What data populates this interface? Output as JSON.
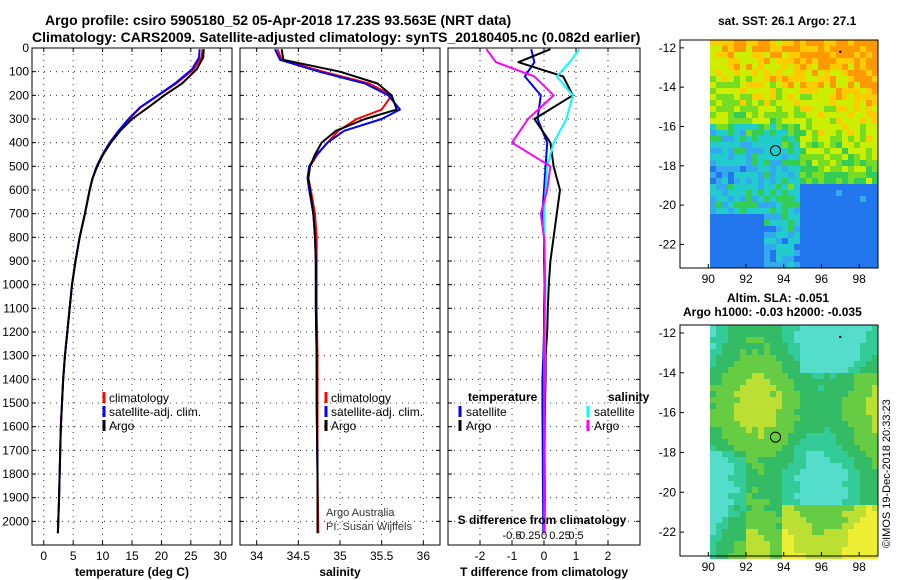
{
  "header": {
    "title_line1": "Argo profile: csiro 5905180_52 05-Apr-2018 17.23S 93.563E (NRT data)",
    "title_line2": "Climatology: CARS2009. Satellite-adjusted climatology: synTS_20180405.nc (0.082d earlier)"
  },
  "colors": {
    "climatology": "#ff0000",
    "satellite": "#0000ff",
    "argo": "#000000",
    "sat_salinity": "#00ffff",
    "argo_salinity_diff": "#ff00ff"
  },
  "chart_data": [
    {
      "type": "line",
      "id": "temperature",
      "xlabel": "temperature (deg C)",
      "ylabel": "",
      "xlim": [
        -2,
        32
      ],
      "ylim": [
        2100,
        0
      ],
      "xticks": [
        0,
        5,
        10,
        15,
        20,
        25,
        30
      ],
      "xtick_labels": [
        "0",
        "5",
        "10",
        "15",
        "20",
        "25",
        "30"
      ],
      "yticks": [
        0,
        100,
        200,
        300,
        400,
        500,
        600,
        700,
        800,
        900,
        1000,
        1100,
        1200,
        1300,
        1400,
        1500,
        1600,
        1700,
        1800,
        1900,
        2000
      ],
      "ytick_labels": [
        "0",
        "100",
        "200",
        "300",
        "400",
        "500",
        "600",
        "700",
        "800",
        "900",
        "1000",
        "1100",
        "1200",
        "1300",
        "1400",
        "1500",
        "1600",
        "1700",
        "1800",
        "1900",
        "2000"
      ],
      "legend": [
        "climatology",
        "satellite-adj. clim.",
        "Argo"
      ],
      "series": [
        {
          "name": "climatology",
          "color": "#ff0000",
          "x": [
            27.0,
            26.8,
            25.5,
            22.5,
            19.5,
            16.5,
            14.5,
            12.8,
            11.2,
            10.0,
            9.0,
            8.3,
            7.8,
            7.0,
            6.1,
            5.4,
            4.8,
            4.4,
            4.0,
            3.6,
            3.3,
            3.1,
            2.9,
            2.8,
            2.6,
            2.4
          ],
          "y": [
            5,
            40,
            90,
            150,
            200,
            250,
            300,
            350,
            400,
            450,
            500,
            550,
            600,
            700,
            800,
            900,
            1000,
            1100,
            1200,
            1300,
            1400,
            1500,
            1600,
            1700,
            1900,
            2050
          ]
        },
        {
          "name": "satellite-adj. clim.",
          "color": "#0000ff",
          "x": [
            26.5,
            26.4,
            25.2,
            22.3,
            19.4,
            16.4,
            14.4,
            12.7,
            11.2,
            10.0,
            9.0,
            8.3,
            7.8,
            7.0,
            6.1,
            5.4,
            4.8,
            4.4,
            4.0,
            3.6,
            3.3,
            3.1,
            2.9,
            2.8,
            2.6,
            2.4
          ],
          "y": [
            5,
            40,
            90,
            150,
            200,
            250,
            300,
            350,
            400,
            450,
            500,
            550,
            600,
            700,
            800,
            900,
            1000,
            1100,
            1200,
            1300,
            1400,
            1500,
            1600,
            1700,
            1900,
            2050
          ]
        },
        {
          "name": "Argo",
          "color": "#000000",
          "x": [
            27.2,
            27.1,
            26.0,
            23.5,
            20.5,
            17.8,
            15.0,
            13.0,
            11.4,
            10.1,
            9.1,
            8.3,
            7.8,
            7.0,
            6.1,
            5.4,
            4.8,
            4.4,
            4.0,
            3.6,
            3.3,
            3.1,
            2.9,
            2.8,
            2.6,
            2.4
          ],
          "y": [
            5,
            40,
            90,
            150,
            200,
            250,
            300,
            350,
            400,
            450,
            500,
            550,
            600,
            700,
            800,
            900,
            1000,
            1100,
            1200,
            1300,
            1400,
            1500,
            1600,
            1700,
            1900,
            2050
          ]
        }
      ]
    },
    {
      "type": "line",
      "id": "salinity",
      "xlabel": "salinity",
      "xlim": [
        33.8,
        36.2
      ],
      "ylim": [
        2100,
        0
      ],
      "xticks": [
        34,
        34.5,
        35,
        35.5,
        36
      ],
      "xtick_labels": [
        "34",
        "34.5",
        "35",
        "35.5",
        "36"
      ],
      "yticks": [
        0,
        100,
        200,
        300,
        400,
        500,
        600,
        700,
        800,
        900,
        1000,
        1100,
        1200,
        1300,
        1400,
        1500,
        1600,
        1700,
        1800,
        1900,
        2000
      ],
      "legend": [
        "climatology",
        "satellite-adj. clim.",
        "Argo"
      ],
      "annotation": [
        "Argo Australia",
        "PI: Susan Wijffels"
      ],
      "series": [
        {
          "name": "climatology",
          "color": "#ff0000",
          "x": [
            34.25,
            34.3,
            34.8,
            35.35,
            35.62,
            35.5,
            35.2,
            34.98,
            34.85,
            34.73,
            34.64,
            34.62,
            34.65,
            34.7,
            34.72,
            34.72,
            34.72,
            34.73,
            34.73,
            34.73,
            34.74
          ],
          "y": [
            5,
            50,
            100,
            150,
            200,
            260,
            300,
            350,
            400,
            450,
            500,
            550,
            600,
            700,
            800,
            900,
            1100,
            1300,
            1500,
            1800,
            2050
          ]
        },
        {
          "name": "satellite-adj. clim.",
          "color": "#0000ff",
          "x": [
            34.22,
            34.28,
            34.75,
            35.3,
            35.58,
            35.72,
            35.5,
            35.05,
            34.85,
            34.72,
            34.63,
            34.61,
            34.63,
            34.68,
            34.7,
            34.71,
            34.71,
            34.72,
            34.72,
            34.73,
            34.73
          ],
          "y": [
            5,
            50,
            100,
            150,
            200,
            260,
            300,
            350,
            400,
            450,
            500,
            550,
            600,
            700,
            800,
            900,
            1100,
            1300,
            1500,
            1800,
            2050
          ]
        },
        {
          "name": "Argo",
          "color": "#000000",
          "x": [
            34.3,
            34.32,
            35.0,
            35.45,
            35.62,
            35.68,
            35.3,
            34.95,
            34.78,
            34.7,
            34.64,
            34.62,
            34.64,
            34.68,
            34.7,
            34.71,
            34.71,
            34.72,
            34.72,
            34.73,
            34.73
          ],
          "y": [
            5,
            50,
            100,
            150,
            200,
            260,
            300,
            350,
            400,
            450,
            500,
            550,
            600,
            700,
            800,
            900,
            1100,
            1300,
            1500,
            1800,
            2050
          ]
        }
      ]
    },
    {
      "type": "line",
      "id": "difference",
      "xlabel": "T difference from climatology",
      "xlabel_top": "S difference from climatology",
      "xlim": [
        -3,
        3
      ],
      "ylim": [
        2100,
        0
      ],
      "xticks": [
        -2,
        -1,
        0,
        1,
        2
      ],
      "xtick_labels": [
        "-2",
        "-1",
        "0",
        "1",
        "2"
      ],
      "sticks": [
        -0.5,
        -0.25,
        0,
        0.25,
        0.5
      ],
      "stick_labels": [
        "-0.5",
        "-0.25",
        "0",
        "0.25",
        "0.5"
      ],
      "yticks": [
        0,
        100,
        200,
        300,
        400,
        500,
        600,
        700,
        800,
        900,
        1000,
        1100,
        1200,
        1300,
        1400,
        1500,
        1600,
        1700,
        1800,
        1900,
        2000
      ],
      "legend_left_title": "temperature",
      "legend_right_title": "salinity",
      "legend_left": [
        "satellite",
        "Argo"
      ],
      "legend_right": [
        "satellite",
        "Argo"
      ],
      "series": [
        {
          "name": "temperature satellite",
          "color": "#0000ff",
          "x": [
            -0.4,
            -0.3,
            -0.6,
            -0.1,
            -0.2,
            0.1,
            0.05,
            0,
            -0.05,
            0,
            0,
            0.02,
            0,
            0,
            -0.02,
            -0.05,
            -0.05,
            -0.04,
            -0.03,
            -0.02
          ],
          "y": [
            5,
            60,
            120,
            200,
            300,
            400,
            500,
            600,
            700,
            800,
            900,
            1000,
            1100,
            1200,
            1300,
            1400,
            1500,
            1700,
            1900,
            2050
          ]
        },
        {
          "name": "temperature Argo",
          "color": "#000000",
          "x": [
            0.2,
            -0.8,
            0.6,
            0.9,
            -0.3,
            0.2,
            0.3,
            0.5,
            0.4,
            0.3,
            0.2,
            0.15,
            0.12,
            0.1,
            0.05,
            0.05,
            0.03,
            0.02,
            0.02,
            0.01
          ],
          "y": [
            5,
            60,
            120,
            200,
            300,
            400,
            500,
            600,
            700,
            800,
            900,
            1000,
            1100,
            1200,
            1300,
            1400,
            1500,
            1700,
            1900,
            2050
          ]
        },
        {
          "name": "salinity satellite",
          "color": "#00ffff",
          "x": [
            1.1,
            0.8,
            0.4,
            0.9,
            0.7,
            0.3,
            0.1,
            0.05,
            0.0,
            0.02,
            0.03,
            0.05,
            0.04,
            0.03,
            0.02,
            0.02,
            0.01,
            0.01,
            0.0,
            0.0
          ],
          "y": [
            5,
            60,
            120,
            200,
            300,
            400,
            500,
            600,
            700,
            800,
            900,
            1000,
            1100,
            1200,
            1300,
            1400,
            1500,
            1700,
            1900,
            2050
          ]
        },
        {
          "name": "salinity Argo",
          "color": "#ff00ff",
          "x": [
            -1.8,
            -1.5,
            -0.3,
            0.3,
            -0.5,
            -1.0,
            0.2,
            0.1,
            -0.1,
            0.0,
            0.02,
            0.03,
            0.02,
            0.01,
            0.0,
            0.0,
            0.0,
            0.0,
            0.0,
            0.0
          ],
          "y": [
            5,
            60,
            120,
            200,
            300,
            400,
            500,
            600,
            700,
            800,
            900,
            1000,
            1100,
            1200,
            1300,
            1400,
            1500,
            1700,
            1900,
            2050
          ]
        }
      ]
    },
    {
      "type": "heatmap",
      "id": "sst_map",
      "title": "sat. SST: 26.1 Argo: 27.1",
      "xticks": [
        90,
        92,
        94,
        96,
        98
      ],
      "xtick_labels": [
        "90",
        "92",
        "94",
        "96",
        "98"
      ],
      "yticks": [
        -12,
        -14,
        -16,
        -18,
        -20,
        -22
      ],
      "ytick_labels": [
        "-12",
        "-14",
        "-16",
        "-18",
        "-20",
        "-22"
      ],
      "xlim": [
        88.5,
        99
      ],
      "ylim": [
        -23.2,
        -11.6
      ],
      "profile_lon": 93.563,
      "profile_lat": -17.23
    },
    {
      "type": "heatmap",
      "id": "sla_map",
      "title_line1": "Altim. SLA: -0.051",
      "title_line2": "Argo h1000: -0.03 h2000: -0.035",
      "xticks": [
        90,
        92,
        94,
        96,
        98
      ],
      "xtick_labels": [
        "90",
        "92",
        "94",
        "96",
        "98"
      ],
      "yticks": [
        -12,
        -14,
        -16,
        -18,
        -20,
        -22
      ],
      "ytick_labels": [
        "-12",
        "-14",
        "-16",
        "-18",
        "-20",
        "-22"
      ],
      "xlim": [
        88.5,
        99
      ],
      "ylim": [
        -23.2,
        -11.6
      ],
      "profile_lon": 93.563,
      "profile_lat": -17.23
    }
  ],
  "footer": {
    "watermark": "©IMOS 19-Dec-2018 20:33:23"
  }
}
